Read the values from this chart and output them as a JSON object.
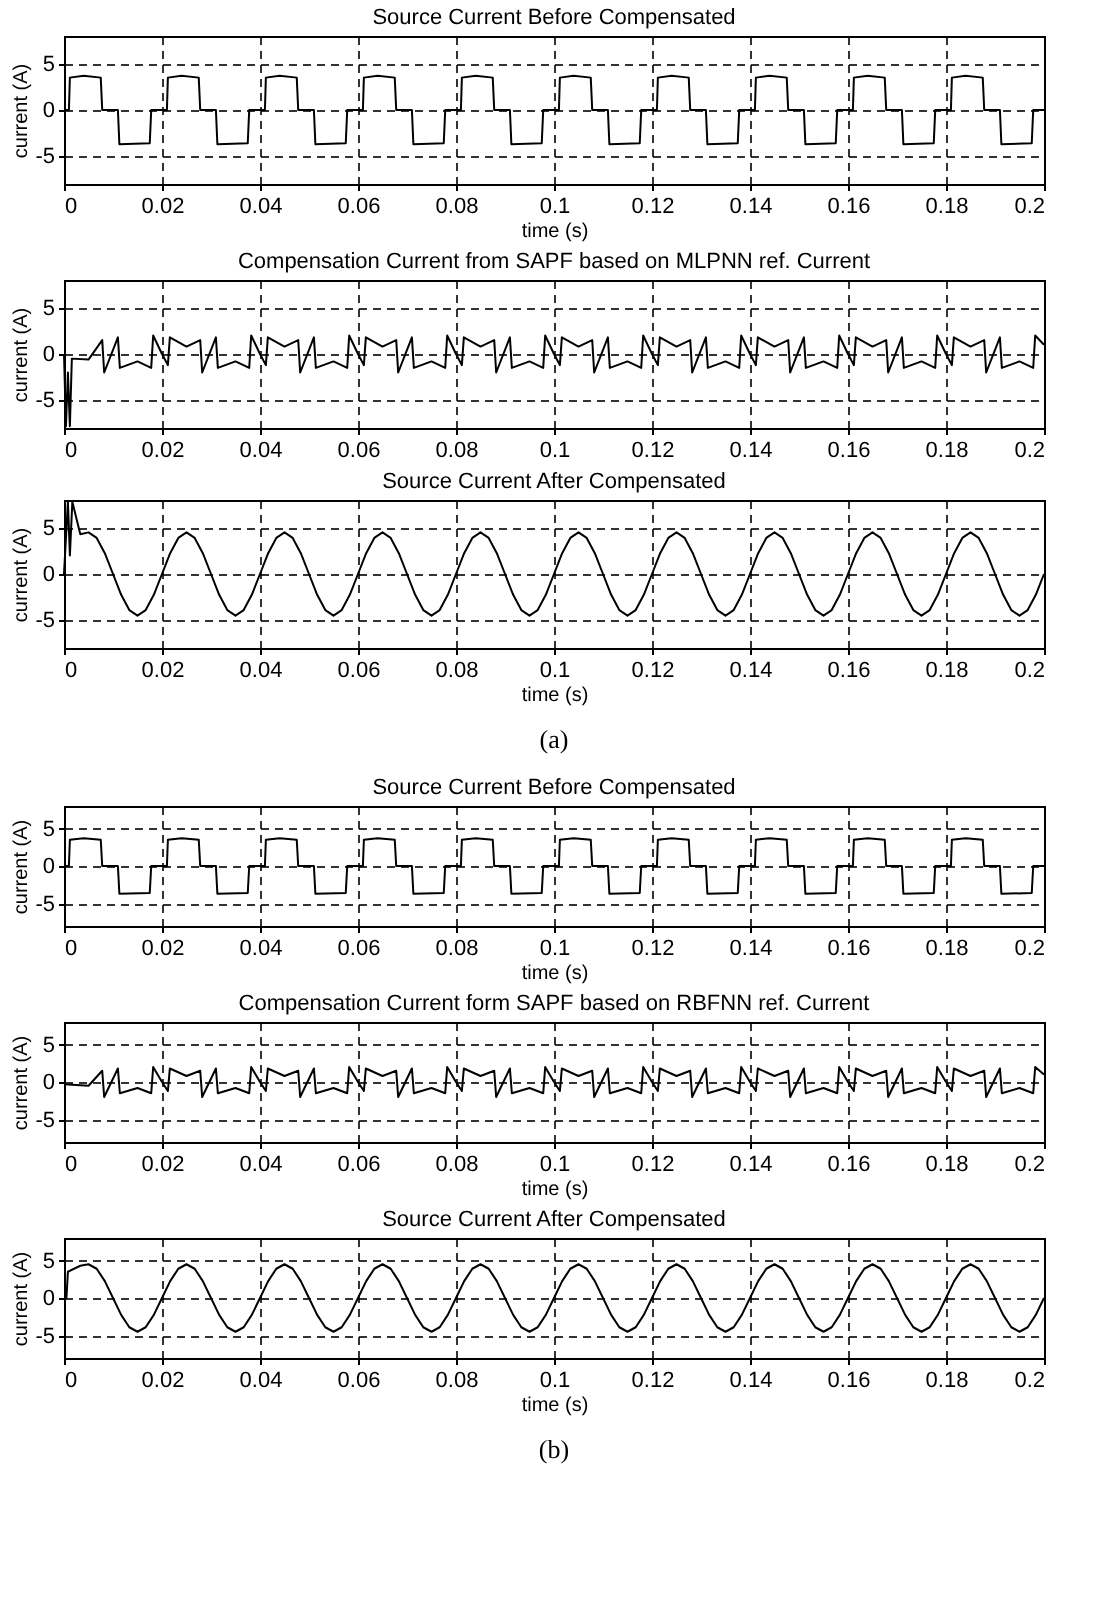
{
  "chart_data": [
    {
      "type": "line",
      "title": "Source Current Before Compensated",
      "xlabel": "time (s)",
      "ylabel": "current (A)",
      "xlim": [
        0,
        0.2
      ],
      "ylim": [
        -8,
        8
      ],
      "xticks": [
        0,
        0.02,
        0.04,
        0.06,
        0.08,
        0.1,
        0.12,
        0.14,
        0.16,
        0.18,
        0.2
      ],
      "yticks": [
        -5,
        0,
        5
      ],
      "grid": true,
      "x": [
        0,
        0.001,
        0.0012,
        0.004,
        0.0075,
        0.0078,
        0.011,
        0.0113,
        0.0175,
        0.0178,
        0.021,
        0.0212,
        0.024,
        0.0275,
        0.0278,
        0.031,
        0.0313,
        0.0375,
        0.0378,
        0.041,
        0.0412,
        0.044,
        0.0475,
        0.0478,
        0.051,
        0.0513,
        0.0575,
        0.0578,
        0.061,
        0.0612,
        0.064,
        0.0675,
        0.0678,
        0.071,
        0.0713,
        0.0775,
        0.0778,
        0.081,
        0.0812,
        0.084,
        0.0875,
        0.0878,
        0.091,
        0.0913,
        0.0975,
        0.0978,
        0.101,
        0.1012,
        0.104,
        0.1075,
        0.1078,
        0.111,
        0.1113,
        0.1175,
        0.1178,
        0.121,
        0.1212,
        0.124,
        0.1275,
        0.1278,
        0.131,
        0.1313,
        0.1375,
        0.1378,
        0.141,
        0.1412,
        0.144,
        0.1475,
        0.1478,
        0.151,
        0.1513,
        0.1575,
        0.1578,
        0.161,
        0.1612,
        0.164,
        0.1675,
        0.1678,
        0.171,
        0.1713,
        0.1775,
        0.1778,
        0.181,
        0.1812,
        0.184,
        0.1875,
        0.1878,
        0.191,
        0.1913,
        0.1975,
        0.1978,
        0.2
      ],
      "series": [
        {
          "color": "#000000",
          "values": [
            0,
            0,
            3.5,
            3.7,
            3.5,
            0,
            0,
            -3.7,
            -3.6,
            0,
            0,
            3.5,
            3.7,
            3.5,
            0,
            0,
            -3.7,
            -3.6,
            0,
            0,
            3.5,
            3.7,
            3.5,
            0,
            0,
            -3.7,
            -3.6,
            0,
            0,
            3.5,
            3.7,
            3.5,
            0,
            0,
            -3.7,
            -3.6,
            0,
            0,
            3.5,
            3.7,
            3.5,
            0,
            0,
            -3.7,
            -3.6,
            0,
            0,
            3.5,
            3.7,
            3.5,
            0,
            0,
            -3.7,
            -3.6,
            0,
            0,
            3.5,
            3.7,
            3.5,
            0,
            0,
            -3.7,
            -3.6,
            0,
            0,
            3.5,
            3.7,
            3.5,
            0,
            0,
            -3.7,
            -3.6,
            0,
            0,
            3.5,
            3.7,
            3.5,
            0,
            0,
            -3.7,
            -3.6,
            0,
            0,
            3.5,
            3.7,
            3.5,
            0,
            0,
            -3.7,
            -3.6,
            0,
            0
          ]
        }
      ]
    },
    {
      "type": "line",
      "title": "Compensation Current from SAPF based on MLPNN ref. Current",
      "ylabel": "current (A)",
      "xlim": [
        0,
        0.2
      ],
      "ylim": [
        -8,
        8
      ],
      "xticks": [
        0,
        0.02,
        0.04,
        0.06,
        0.08,
        0.1,
        0.12,
        0.14,
        0.16,
        0.18,
        0.2
      ],
      "yticks": [
        -5,
        0,
        5
      ],
      "grid": true,
      "x": [
        0,
        0.0004,
        0.0008,
        0.0012,
        0.0016,
        0.005,
        0.0078,
        0.0082,
        0.011,
        0.0114,
        0.015,
        0.0178,
        0.0182,
        0.02,
        0.0212,
        0.0216,
        0.025,
        0.0278,
        0.0282,
        0.031,
        0.0314,
        0.035,
        0.0378,
        0.0382,
        0.04,
        0.0412,
        0.0416,
        0.045,
        0.0478,
        0.0482,
        0.051,
        0.0514,
        0.055,
        0.0578,
        0.0582,
        0.06,
        0.0612,
        0.0616,
        0.065,
        0.0678,
        0.0682,
        0.071,
        0.0714,
        0.075,
        0.0778,
        0.0782,
        0.08,
        0.0812,
        0.0816,
        0.085,
        0.0878,
        0.0882,
        0.091,
        0.0914,
        0.095,
        0.0978,
        0.0982,
        0.1,
        0.1012,
        0.1016,
        0.105,
        0.1078,
        0.1082,
        0.111,
        0.1114,
        0.115,
        0.1178,
        0.1182,
        0.12,
        0.1212,
        0.1216,
        0.125,
        0.1278,
        0.1282,
        0.131,
        0.1314,
        0.135,
        0.1378,
        0.1382,
        0.14,
        0.1412,
        0.1416,
        0.145,
        0.1478,
        0.1482,
        0.151,
        0.1514,
        0.155,
        0.1578,
        0.1582,
        0.16,
        0.1612,
        0.1616,
        0.165,
        0.1678,
        0.1682,
        0.171,
        0.1714,
        0.175,
        0.1778,
        0.1782,
        0.18,
        0.1812,
        0.1816,
        0.185,
        0.1878,
        0.1882,
        0.191,
        0.1914,
        0.195,
        0.1978,
        0.1982,
        0.2
      ],
      "series": [
        {
          "color": "#000000",
          "values": [
            0,
            -7.8,
            -2,
            -7.8,
            -0.5,
            -0.6,
            1.5,
            -2,
            1.8,
            -1.5,
            -0.8,
            -1.5,
            2,
            0,
            -1.2,
            1.8,
            0.8,
            1.5,
            -2,
            1.8,
            -1.5,
            -0.8,
            -1.5,
            2,
            0,
            -1.2,
            1.8,
            0.8,
            1.5,
            -2,
            1.8,
            -1.5,
            -0.8,
            -1.5,
            2,
            0,
            -1.2,
            1.8,
            0.8,
            1.5,
            -2,
            1.8,
            -1.5,
            -0.8,
            -1.5,
            2,
            0,
            -1.2,
            1.8,
            0.8,
            1.5,
            -2,
            1.8,
            -1.5,
            -0.8,
            -1.5,
            2,
            0,
            -1.2,
            1.8,
            0.8,
            1.5,
            -2,
            1.8,
            -1.5,
            -0.8,
            -1.5,
            2,
            0,
            -1.2,
            1.8,
            0.8,
            1.5,
            -2,
            1.8,
            -1.5,
            -0.8,
            -1.5,
            2,
            0,
            -1.2,
            1.8,
            0.8,
            1.5,
            -2,
            1.8,
            -1.5,
            -0.8,
            -1.5,
            2,
            0,
            -1.2,
            1.8,
            0.8,
            1.5,
            -2,
            1.8,
            -1.5,
            -0.8,
            -1.5,
            2,
            0,
            -1.2,
            1.8,
            0.8,
            1.5,
            -2,
            1.8,
            -1.5,
            -0.8,
            -1.5,
            2,
            1
          ]
        }
      ]
    },
    {
      "type": "line",
      "title": "Source Current After Compensated",
      "xlabel": "time (s)",
      "ylabel": "current (A)",
      "xlim": [
        0,
        0.2
      ],
      "ylim": [
        -8,
        8
      ],
      "xticks": [
        0,
        0.02,
        0.04,
        0.06,
        0.08,
        0.1,
        0.12,
        0.14,
        0.16,
        0.18,
        0.2
      ],
      "yticks": [
        -5,
        0,
        5
      ],
      "grid": true,
      "annotations": [
        "(a)"
      ],
      "x": [
        0,
        0.0008,
        0.0012,
        0.0017,
        0.00333,
        0.005,
        0.00667,
        0.00833,
        0.01,
        0.01167,
        0.01333,
        0.015,
        0.01667,
        0.01833,
        0.02,
        0.02167,
        0.02333,
        0.025,
        0.02667,
        0.02833,
        0.03,
        0.03167,
        0.03333,
        0.035,
        0.03667,
        0.03833,
        0.04,
        0.04167,
        0.04333,
        0.045,
        0.04667,
        0.04833,
        0.05,
        0.05167,
        0.05333,
        0.055,
        0.05667,
        0.05833,
        0.06,
        0.06167,
        0.06333,
        0.065,
        0.06667,
        0.06833,
        0.07,
        0.07167,
        0.07333,
        0.075,
        0.07667,
        0.07833,
        0.08,
        0.08167,
        0.08333,
        0.085,
        0.08667,
        0.08833,
        0.09,
        0.09167,
        0.09333,
        0.095,
        0.09667,
        0.09833,
        0.1,
        0.10167,
        0.10333,
        0.105,
        0.10667,
        0.10833,
        0.11,
        0.11167,
        0.11333,
        0.115,
        0.11667,
        0.11833,
        0.12,
        0.12167,
        0.12333,
        0.125,
        0.12667,
        0.12833,
        0.13,
        0.13167,
        0.13333,
        0.135,
        0.13667,
        0.13833,
        0.14,
        0.14167,
        0.14333,
        0.145,
        0.14667,
        0.14833,
        0.15,
        0.15167,
        0.15333,
        0.155,
        0.15667,
        0.15833,
        0.16,
        0.16167,
        0.16333,
        0.165,
        0.16667,
        0.16833,
        0.17,
        0.17167,
        0.17333,
        0.175,
        0.17667,
        0.17833,
        0.18,
        0.18167,
        0.18333,
        0.185,
        0.18667,
        0.18833,
        0.19,
        0.19167,
        0.19333,
        0.195,
        0.19667,
        0.19833,
        0.2
      ],
      "series": [
        {
          "color": "#000000",
          "values": [
            0,
            7.8,
            2,
            7.8,
            4.3,
            4.5,
            3.9,
            2.25,
            0,
            -2.25,
            -3.9,
            -4.5,
            -3.9,
            -2.25,
            0,
            2.25,
            3.9,
            4.5,
            3.9,
            2.25,
            0,
            -2.25,
            -3.9,
            -4.5,
            -3.9,
            -2.25,
            0,
            2.25,
            3.9,
            4.5,
            3.9,
            2.25,
            0,
            -2.25,
            -3.9,
            -4.5,
            -3.9,
            -2.25,
            0,
            2.25,
            3.9,
            4.5,
            3.9,
            2.25,
            0,
            -2.25,
            -3.9,
            -4.5,
            -3.9,
            -2.25,
            0,
            2.25,
            3.9,
            4.5,
            3.9,
            2.25,
            0,
            -2.25,
            -3.9,
            -4.5,
            -3.9,
            -2.25,
            0,
            2.25,
            3.9,
            4.5,
            3.9,
            2.25,
            0,
            -2.25,
            -3.9,
            -4.5,
            -3.9,
            -2.25,
            0,
            2.25,
            3.9,
            4.5,
            3.9,
            2.25,
            0,
            -2.25,
            -3.9,
            -4.5,
            -3.9,
            -2.25,
            0,
            2.25,
            3.9,
            4.5,
            3.9,
            2.25,
            0,
            -2.25,
            -3.9,
            -4.5,
            -3.9,
            -2.25,
            0,
            2.25,
            3.9,
            4.5,
            3.9,
            2.25,
            0,
            -2.25,
            -3.9,
            -4.5,
            -3.9,
            -2.25,
            0,
            2.25,
            3.9,
            4.5,
            3.9,
            2.25,
            0,
            -2.25,
            -3.9,
            -4.5,
            -3.9,
            -2.25,
            0
          ]
        }
      ]
    },
    {
      "type": "line",
      "title": "Source Current Before Compensated",
      "xlabel": "time (s)",
      "ylabel": "current (A)",
      "xlim": [
        0,
        0.2
      ],
      "ylim": [
        -8,
        8
      ],
      "xticks": [
        0,
        0.02,
        0.04,
        0.06,
        0.08,
        0.1,
        0.12,
        0.14,
        0.16,
        0.18,
        0.2
      ],
      "yticks": [
        -5,
        0,
        5
      ],
      "grid": true,
      "x": [
        0,
        0.001,
        0.0012,
        0.004,
        0.0075,
        0.0078,
        0.011,
        0.0113,
        0.0175,
        0.0178,
        0.021,
        0.0212,
        0.024,
        0.0275,
        0.0278,
        0.031,
        0.0313,
        0.0375,
        0.0378,
        0.041,
        0.0412,
        0.044,
        0.0475,
        0.0478,
        0.051,
        0.0513,
        0.0575,
        0.0578,
        0.061,
        0.0612,
        0.064,
        0.0675,
        0.0678,
        0.071,
        0.0713,
        0.0775,
        0.0778,
        0.081,
        0.0812,
        0.084,
        0.0875,
        0.0878,
        0.091,
        0.0913,
        0.0975,
        0.0978,
        0.101,
        0.1012,
        0.104,
        0.1075,
        0.1078,
        0.111,
        0.1113,
        0.1175,
        0.1178,
        0.121,
        0.1212,
        0.124,
        0.1275,
        0.1278,
        0.131,
        0.1313,
        0.1375,
        0.1378,
        0.141,
        0.1412,
        0.144,
        0.1475,
        0.1478,
        0.151,
        0.1513,
        0.1575,
        0.1578,
        0.161,
        0.1612,
        0.164,
        0.1675,
        0.1678,
        0.171,
        0.1713,
        0.1775,
        0.1778,
        0.181,
        0.1812,
        0.184,
        0.1875,
        0.1878,
        0.191,
        0.1913,
        0.1975,
        0.1978,
        0.2
      ],
      "series": [
        {
          "color": "#000000",
          "values": [
            0,
            0,
            3.5,
            3.7,
            3.5,
            0,
            0,
            -3.7,
            -3.6,
            0,
            0,
            3.5,
            3.7,
            3.5,
            0,
            0,
            -3.7,
            -3.6,
            0,
            0,
            3.5,
            3.7,
            3.5,
            0,
            0,
            -3.7,
            -3.6,
            0,
            0,
            3.5,
            3.7,
            3.5,
            0,
            0,
            -3.7,
            -3.6,
            0,
            0,
            3.5,
            3.7,
            3.5,
            0,
            0,
            -3.7,
            -3.6,
            0,
            0,
            3.5,
            3.7,
            3.5,
            0,
            0,
            -3.7,
            -3.6,
            0,
            0,
            3.5,
            3.7,
            3.5,
            0,
            0,
            -3.7,
            -3.6,
            0,
            0,
            3.5,
            3.7,
            3.5,
            0,
            0,
            -3.7,
            -3.6,
            0,
            0,
            3.5,
            3.7,
            3.5,
            0,
            0,
            -3.7,
            -3.6,
            0,
            0,
            3.5,
            3.7,
            3.5,
            0,
            0,
            -3.7,
            -3.6,
            0,
            0
          ]
        }
      ]
    },
    {
      "type": "line",
      "title": "Compensation Current form SAPF based on RBFNN ref. Current",
      "xlabel": "time (s)",
      "ylabel": "current (A)",
      "xlim": [
        0,
        0.2
      ],
      "ylim": [
        -8,
        8
      ],
      "xticks": [
        0,
        0.02,
        0.04,
        0.06,
        0.08,
        0.1,
        0.12,
        0.14,
        0.16,
        0.18,
        0.2
      ],
      "yticks": [
        -5,
        0,
        5
      ],
      "grid": true,
      "x": [
        0,
        0.005,
        0.0078,
        0.0082,
        0.011,
        0.0114,
        0.015,
        0.0178,
        0.0182,
        0.02,
        0.0212,
        0.0216,
        0.025,
        0.0278,
        0.0282,
        0.031,
        0.0314,
        0.035,
        0.0378,
        0.0382,
        0.04,
        0.0412,
        0.0416,
        0.045,
        0.0478,
        0.0482,
        0.051,
        0.0514,
        0.055,
        0.0578,
        0.0582,
        0.06,
        0.0612,
        0.0616,
        0.065,
        0.0678,
        0.0682,
        0.071,
        0.0714,
        0.075,
        0.0778,
        0.0782,
        0.08,
        0.0812,
        0.0816,
        0.085,
        0.0878,
        0.0882,
        0.091,
        0.0914,
        0.095,
        0.0978,
        0.0982,
        0.1,
        0.1012,
        0.1016,
        0.105,
        0.1078,
        0.1082,
        0.111,
        0.1114,
        0.115,
        0.1178,
        0.1182,
        0.12,
        0.1212,
        0.1216,
        0.125,
        0.1278,
        0.1282,
        0.131,
        0.1314,
        0.135,
        0.1378,
        0.1382,
        0.14,
        0.1412,
        0.1416,
        0.145,
        0.1478,
        0.1482,
        0.151,
        0.1514,
        0.155,
        0.1578,
        0.1582,
        0.16,
        0.1612,
        0.1616,
        0.165,
        0.1678,
        0.1682,
        0.171,
        0.1714,
        0.175,
        0.1778,
        0.1782,
        0.18,
        0.1812,
        0.1816,
        0.185,
        0.1878,
        0.1882,
        0.191,
        0.1914,
        0.195,
        0.1978,
        0.1982,
        0.2
      ],
      "series": [
        {
          "color": "#000000",
          "values": [
            -0.3,
            -0.5,
            1.5,
            -2,
            1.8,
            -1.5,
            -0.8,
            -1.5,
            2,
            0,
            -1.2,
            1.8,
            0.8,
            1.5,
            -2,
            1.8,
            -1.5,
            -0.8,
            -1.5,
            2,
            0,
            -1.2,
            1.8,
            0.8,
            1.5,
            -2,
            1.8,
            -1.5,
            -0.8,
            -1.5,
            2,
            0,
            -1.2,
            1.8,
            0.8,
            1.5,
            -2,
            1.8,
            -1.5,
            -0.8,
            -1.5,
            2,
            0,
            -1.2,
            1.8,
            0.8,
            1.5,
            -2,
            1.8,
            -1.5,
            -0.8,
            -1.5,
            2,
            0,
            -1.2,
            1.8,
            0.8,
            1.5,
            -2,
            1.8,
            -1.5,
            -0.8,
            -1.5,
            2,
            0,
            -1.2,
            1.8,
            0.8,
            1.5,
            -2,
            1.8,
            -1.5,
            -0.8,
            -1.5,
            2,
            0,
            -1.2,
            1.8,
            0.8,
            1.5,
            -2,
            1.8,
            -1.5,
            -0.8,
            -1.5,
            2,
            0,
            -1.2,
            1.8,
            0.8,
            1.5,
            -2,
            1.8,
            -1.5,
            -0.8,
            -1.5,
            2,
            0,
            -1.2,
            1.8,
            0.8,
            1.5,
            -2,
            1.8,
            -1.5,
            -0.8,
            -1.5,
            2,
            1
          ]
        }
      ]
    },
    {
      "type": "line",
      "title": "Source Current After Compensated",
      "xlabel": "time (s)",
      "ylabel": "current (A)",
      "xlim": [
        0,
        0.2
      ],
      "ylim": [
        -8,
        8
      ],
      "xticks": [
        0,
        0.02,
        0.04,
        0.06,
        0.08,
        0.1,
        0.12,
        0.14,
        0.16,
        0.18,
        0.2
      ],
      "yticks": [
        -5,
        0,
        5
      ],
      "grid": true,
      "annotations": [
        "(b)"
      ],
      "x": [
        0,
        0.0005,
        0.0008,
        0.00333,
        0.005,
        0.00667,
        0.00833,
        0.01,
        0.01167,
        0.01333,
        0.015,
        0.01667,
        0.01833,
        0.02,
        0.02167,
        0.02333,
        0.025,
        0.02667,
        0.02833,
        0.03,
        0.03167,
        0.03333,
        0.035,
        0.03667,
        0.03833,
        0.04,
        0.04167,
        0.04333,
        0.045,
        0.04667,
        0.04833,
        0.05,
        0.05167,
        0.05333,
        0.055,
        0.05667,
        0.05833,
        0.06,
        0.06167,
        0.06333,
        0.065,
        0.06667,
        0.06833,
        0.07,
        0.07167,
        0.07333,
        0.075,
        0.07667,
        0.07833,
        0.08,
        0.08167,
        0.08333,
        0.085,
        0.08667,
        0.08833,
        0.09,
        0.09167,
        0.09333,
        0.095,
        0.09667,
        0.09833,
        0.1,
        0.10167,
        0.10333,
        0.105,
        0.10667,
        0.10833,
        0.11,
        0.11167,
        0.11333,
        0.115,
        0.11667,
        0.11833,
        0.12,
        0.12167,
        0.12333,
        0.125,
        0.12667,
        0.12833,
        0.13,
        0.13167,
        0.13333,
        0.135,
        0.13667,
        0.13833,
        0.14,
        0.14167,
        0.14333,
        0.145,
        0.14667,
        0.14833,
        0.15,
        0.15167,
        0.15333,
        0.155,
        0.15667,
        0.15833,
        0.16,
        0.16167,
        0.16333,
        0.165,
        0.16667,
        0.16833,
        0.17,
        0.17167,
        0.17333,
        0.175,
        0.17667,
        0.17833,
        0.18,
        0.18167,
        0.18333,
        0.185,
        0.18667,
        0.18833,
        0.19,
        0.19167,
        0.19333,
        0.195,
        0.19667,
        0.19833,
        0.2
      ],
      "series": [
        {
          "color": "#000000",
          "values": [
            0,
            0,
            3.5,
            4.3,
            4.5,
            3.9,
            2.25,
            0,
            -2.25,
            -3.9,
            -4.5,
            -3.9,
            -2.25,
            0,
            2.25,
            3.9,
            4.5,
            3.9,
            2.25,
            0,
            -2.25,
            -3.9,
            -4.5,
            -3.9,
            -2.25,
            0,
            2.25,
            3.9,
            4.5,
            3.9,
            2.25,
            0,
            -2.25,
            -3.9,
            -4.5,
            -3.9,
            -2.25,
            0,
            2.25,
            3.9,
            4.5,
            3.9,
            2.25,
            0,
            -2.25,
            -3.9,
            -4.5,
            -3.9,
            -2.25,
            0,
            2.25,
            3.9,
            4.5,
            3.9,
            2.25,
            0,
            -2.25,
            -3.9,
            -4.5,
            -3.9,
            -2.25,
            0,
            2.25,
            3.9,
            4.5,
            3.9,
            2.25,
            0,
            -2.25,
            -3.9,
            -4.5,
            -3.9,
            -2.25,
            0,
            2.25,
            3.9,
            4.5,
            3.9,
            2.25,
            0,
            -2.25,
            -3.9,
            -4.5,
            -3.9,
            -2.25,
            0,
            2.25,
            3.9,
            4.5,
            3.9,
            2.25,
            0,
            -2.25,
            -3.9,
            -4.5,
            -3.9,
            -2.25,
            0,
            2.25,
            3.9,
            4.5,
            3.9,
            2.25,
            0,
            -2.25,
            -3.9,
            -4.5,
            -3.9,
            -2.25,
            0,
            2.25,
            3.9,
            4.5,
            3.9,
            2.25,
            0,
            -2.25,
            -3.9,
            -4.5,
            -3.9,
            -2.25,
            0
          ]
        }
      ]
    }
  ]
}
